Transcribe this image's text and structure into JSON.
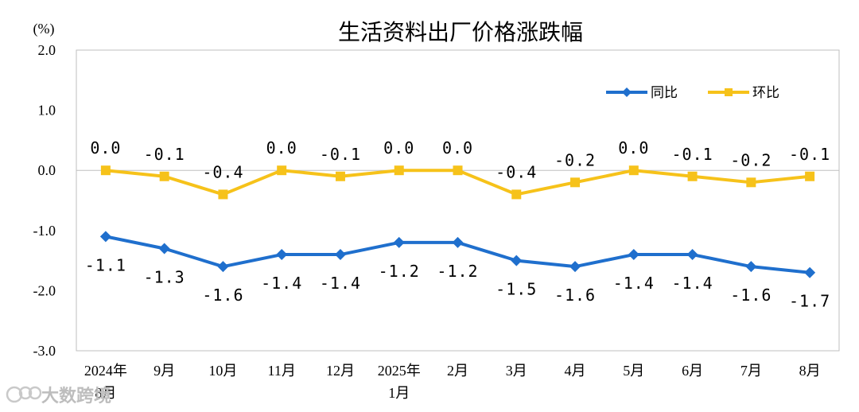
{
  "chart_data": {
    "type": "line",
    "title": "生活资料出厂价格涨跌幅",
    "unit_label": "(%)",
    "ylim": [
      -3.0,
      2.0
    ],
    "yticks": [
      "2.0",
      "1.0",
      "0.0",
      "-1.0",
      "-2.0",
      "-3.0"
    ],
    "ytick_values": [
      2.0,
      1.0,
      0.0,
      -1.0,
      -2.0,
      -3.0
    ],
    "categories": [
      [
        "2024年",
        "8月"
      ],
      [
        "9月"
      ],
      [
        "10月"
      ],
      [
        "11月"
      ],
      [
        "12月"
      ],
      [
        "2025年",
        "1月"
      ],
      [
        "2月"
      ],
      [
        "3月"
      ],
      [
        "4月"
      ],
      [
        "5月"
      ],
      [
        "6月"
      ],
      [
        "7月"
      ],
      [
        "8月"
      ]
    ],
    "series": [
      {
        "name": "同比",
        "color": "#1f6fcd",
        "marker": "diamond",
        "values": [
          -1.1,
          -1.3,
          -1.6,
          -1.4,
          -1.4,
          -1.2,
          -1.2,
          -1.5,
          -1.6,
          -1.4,
          -1.4,
          -1.6,
          -1.7
        ],
        "labels": [
          "-1.1",
          "-1.3",
          "-1.6",
          "-1.4",
          "-1.4",
          "-1.2",
          "-1.2",
          "-1.5",
          "-1.6",
          "-1.4",
          "-1.4",
          "-1.6",
          "-1.7"
        ]
      },
      {
        "name": "环比",
        "color": "#f6c21a",
        "marker": "square",
        "values": [
          0.0,
          -0.1,
          -0.4,
          0.0,
          -0.1,
          0.0,
          0.0,
          -0.4,
          -0.2,
          0.0,
          -0.1,
          -0.2,
          -0.1
        ],
        "labels": [
          "0.0",
          "-0.1",
          "-0.4",
          "0.0",
          "-0.1",
          "0.0",
          "0.0",
          "-0.4",
          "-0.2",
          "0.0",
          "-0.1",
          "-0.2",
          "-0.1"
        ]
      }
    ],
    "legend_position": "top-right",
    "grid": false
  },
  "watermark": "大数跨境"
}
